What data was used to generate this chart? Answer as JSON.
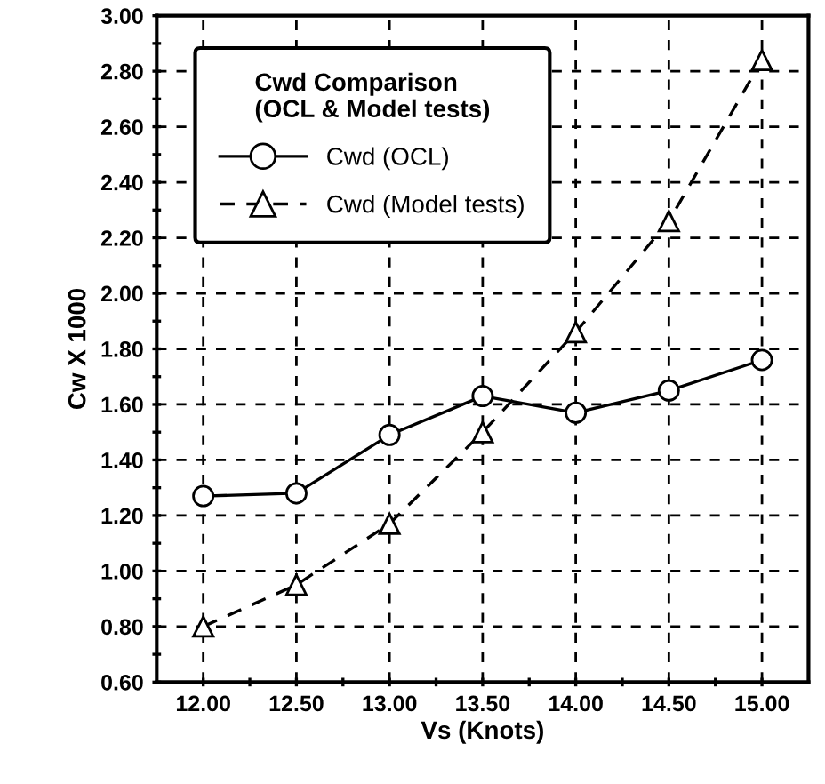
{
  "chart_data": {
    "type": "line",
    "xlabel": "Vs (Knots)",
    "ylabel": "Cw X 1000",
    "legend_title": "Cwd Comparison\n(OCL & Model tests)",
    "x": [
      12.0,
      12.5,
      13.0,
      13.5,
      14.0,
      14.5,
      15.0
    ],
    "series": [
      {
        "name": "Cwd (OCL)",
        "color": "#000000",
        "values": [
          1.27,
          1.28,
          1.49,
          1.63,
          1.57,
          1.65,
          1.76
        ],
        "marker": "circle",
        "line_style": "solid"
      },
      {
        "name": "Cwd (Model tests)",
        "color": "#000000",
        "values": [
          0.8,
          0.95,
          1.17,
          1.5,
          1.86,
          2.26,
          2.84
        ],
        "marker": "triangle",
        "line_style": "dashed"
      }
    ],
    "xlim": [
      11.75,
      15.25
    ],
    "ylim": [
      0.6,
      3.0
    ],
    "xticks": [
      {
        "value": 12.0,
        "label": "12.00"
      },
      {
        "value": 12.25,
        "label": null
      },
      {
        "value": 12.5,
        "label": "12.50"
      },
      {
        "value": 12.75,
        "label": null
      },
      {
        "value": 13.0,
        "label": "13.00"
      },
      {
        "value": 13.25,
        "label": null
      },
      {
        "value": 13.5,
        "label": "13.50"
      },
      {
        "value": 13.75,
        "label": null
      },
      {
        "value": 14.0,
        "label": "14.00"
      },
      {
        "value": 14.25,
        "label": null
      },
      {
        "value": 14.5,
        "label": "14.50"
      },
      {
        "value": 14.75,
        "label": null
      },
      {
        "value": 15.0,
        "label": "15.00"
      }
    ],
    "yticks": [
      {
        "value": 0.6,
        "label": "0.60"
      },
      {
        "value": 0.7,
        "label": null
      },
      {
        "value": 0.8,
        "label": "0.80"
      },
      {
        "value": 0.9,
        "label": null
      },
      {
        "value": 1.0,
        "label": "1.00"
      },
      {
        "value": 1.1,
        "label": null
      },
      {
        "value": 1.2,
        "label": "1.20"
      },
      {
        "value": 1.3,
        "label": null
      },
      {
        "value": 1.4,
        "label": "1.40"
      },
      {
        "value": 1.5,
        "label": null
      },
      {
        "value": 1.6,
        "label": "1.60"
      },
      {
        "value": 1.7,
        "label": null
      },
      {
        "value": 1.8,
        "label": "1.80"
      },
      {
        "value": 1.9,
        "label": null
      },
      {
        "value": 2.0,
        "label": "2.00"
      },
      {
        "value": 2.1,
        "label": null
      },
      {
        "value": 2.2,
        "label": "2.20"
      },
      {
        "value": 2.3,
        "label": null
      },
      {
        "value": 2.4,
        "label": "2.40"
      },
      {
        "value": 2.5,
        "label": null
      },
      {
        "value": 2.6,
        "label": "2.60"
      },
      {
        "value": 2.7,
        "label": null
      },
      {
        "value": 2.8,
        "label": "2.80"
      },
      {
        "value": 2.9,
        "label": null
      },
      {
        "value": 3.0,
        "label": "3.00"
      }
    ],
    "grid": true,
    "legend": "top left"
  }
}
